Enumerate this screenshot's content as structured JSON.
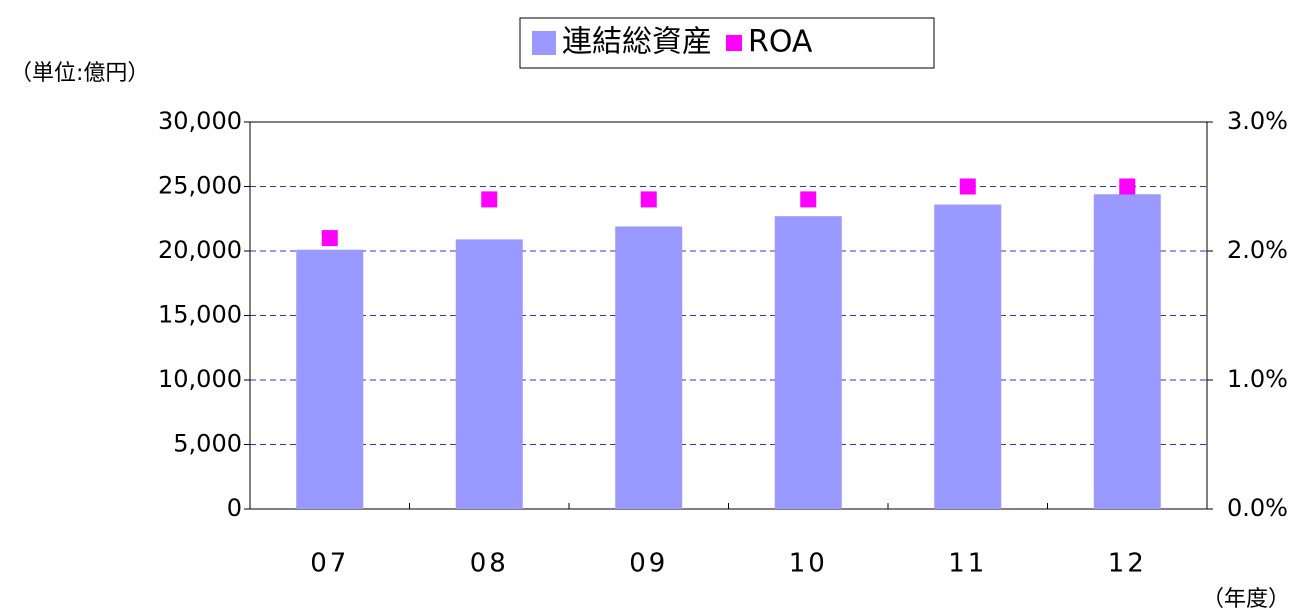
{
  "chart_data": {
    "type": "bar",
    "y_label": "（単位:億円）",
    "x_label": "（年度）",
    "categories": [
      "07",
      "08",
      "09",
      "10",
      "11",
      "12"
    ],
    "series": [
      {
        "name": "連結総資産",
        "type": "bar",
        "color": "#9999ff",
        "values": [
          20100,
          20900,
          21900,
          22700,
          23600,
          24400
        ]
      },
      {
        "name": "ROA",
        "type": "scatter",
        "color": "#ff00ff",
        "axis": "y2",
        "values": [
          2.1,
          2.4,
          2.4,
          2.4,
          2.5,
          2.5
        ]
      }
    ],
    "ylim": [
      0,
      30000
    ],
    "yticks": [
      0,
      {
        "value": 5000,
        "label": "5,000"
      },
      {
        "value": 10000,
        "label": "10,000"
      },
      {
        "value": 15000,
        "label": "15,000"
      },
      {
        "value": 20000,
        "label": "20,000"
      },
      {
        "value": 25000,
        "label": "25,000"
      },
      {
        "value": 30000,
        "label": "30,000"
      }
    ],
    "y2lim": [
      0,
      3
    ],
    "y2ticks": [
      {
        "value": 0,
        "label": "0.0%"
      },
      {
        "value": 1,
        "label": "1.0%"
      },
      {
        "value": 2,
        "label": "2.0%"
      },
      {
        "value": 3,
        "label": "3.0%"
      }
    ],
    "grid": true,
    "legend": "top"
  }
}
